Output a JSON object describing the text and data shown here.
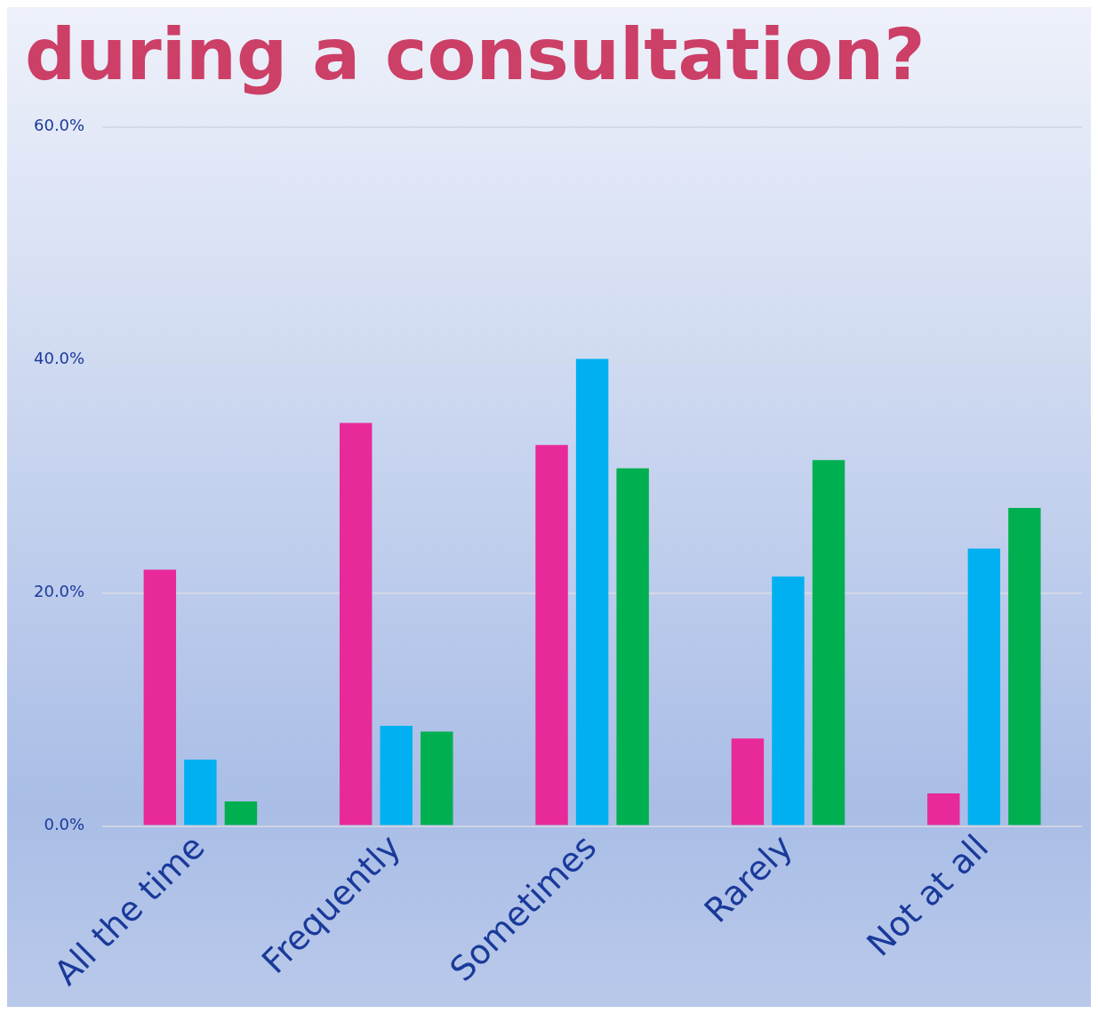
{
  "chart_data": {
    "type": "bar",
    "title": "during a consultation?",
    "categories": [
      "All the time",
      "Frequently",
      "Sometimes",
      "Rarely",
      "Not at all"
    ],
    "series": [
      {
        "color": "#e8299a",
        "values": [
          22.0,
          34.6,
          32.7,
          7.5,
          2.8
        ]
      },
      {
        "color": "#00b0f0",
        "values": [
          5.7,
          8.6,
          40.1,
          21.4,
          23.8
        ]
      },
      {
        "color": "#00b050",
        "values": [
          2.1,
          8.1,
          30.7,
          31.4,
          27.3
        ]
      }
    ],
    "ylim": [
      0,
      60
    ],
    "yticks": [
      {
        "value": 0,
        "label": "0.0%"
      },
      {
        "value": 20,
        "label": "20.0%"
      },
      {
        "value": 40,
        "label": "40.0%"
      },
      {
        "value": 60,
        "label": "60.0%"
      }
    ],
    "grid": "y",
    "legend": false
  }
}
